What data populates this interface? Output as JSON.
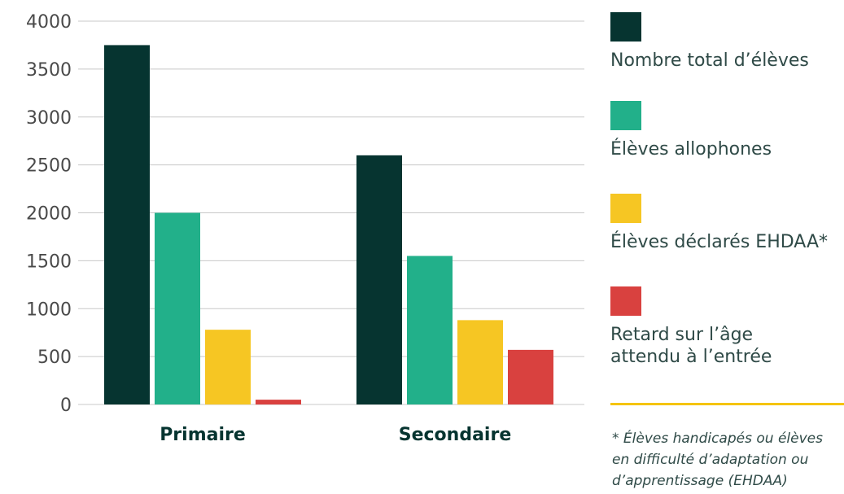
{
  "chart_data": {
    "type": "bar",
    "categories": [
      "Primaire",
      "Secondaire"
    ],
    "series": [
      {
        "name": "Nombre total d’élèves",
        "color": "#063430",
        "values": [
          3750,
          2600
        ]
      },
      {
        "name": "Élèves allophones",
        "color": "#22b08a",
        "values": [
          2000,
          1550
        ]
      },
      {
        "name": "Élèves déclarés EHDAA*",
        "color": "#f6c623",
        "values": [
          780,
          880
        ]
      },
      {
        "name": "Retard sur l’âge\nattendu à l’entrée",
        "color": "#d9413f",
        "values": [
          50,
          570
        ]
      }
    ],
    "ylim": [
      0,
      4000
    ],
    "yticks": [
      0,
      500,
      1000,
      1500,
      2000,
      2500,
      3000,
      3500,
      4000
    ],
    "grid": true,
    "legend_position": "right"
  },
  "footnote": "* Élèves handicapés ou élèves\nen difficulté d’adaptation ou\nd’apprentissage (EHDAA)",
  "colors": {
    "axis_text": "#4a4a4a",
    "category_text": "#063430",
    "grid": "#c8c8c8",
    "divider": "#f5c400"
  }
}
